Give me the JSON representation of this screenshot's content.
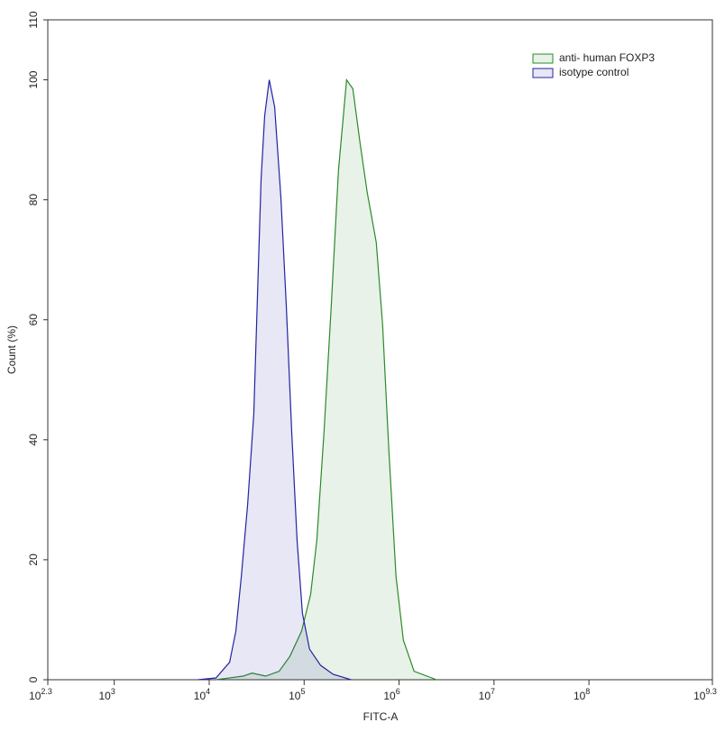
{
  "chart_data": {
    "type": "area",
    "x_label": "FITC-A",
    "y_label": "Count (%)",
    "x_log": true,
    "xlim": [
      199.526,
      1995262315
    ],
    "xticks": [
      {
        "value": 199.526,
        "label": "10",
        "power": "2.3"
      },
      {
        "value": 1000,
        "label": "10",
        "power": "3"
      },
      {
        "value": 10000,
        "label": "10",
        "power": "4"
      },
      {
        "value": 100000,
        "label": "10",
        "power": "5"
      },
      {
        "value": 1000000,
        "label": "10",
        "power": "6"
      },
      {
        "value": 10000000,
        "label": "10",
        "power": "7"
      },
      {
        "value": 100000000,
        "label": "10",
        "power": "8"
      },
      {
        "value": 1995262315,
        "label": "10",
        "power": "9.3"
      }
    ],
    "ylim": [
      0,
      110
    ],
    "yticks": [
      0,
      20,
      40,
      60,
      80,
      100,
      110
    ],
    "legend": "top-right",
    "series": [
      {
        "name": "anti- human FOXP3",
        "color": "#2a8a2a",
        "x": [
          11800,
          22700,
          28300,
          39300,
          54500,
          70800,
          94000,
          117000,
          136000,
          162000,
          193000,
          230000,
          280000,
          326000,
          388000,
          462000,
          575000,
          670000,
          780000,
          929000,
          1110000,
          1440000,
          2480000
        ],
        "values": [
          0,
          0.6,
          1.1,
          0.6,
          1.4,
          3.9,
          8.1,
          14.2,
          23.2,
          41.3,
          62.3,
          84.9,
          100,
          98.5,
          89.5,
          81.2,
          72.9,
          59.3,
          38.3,
          17.2,
          6.6,
          1.4,
          0
        ]
      },
      {
        "name": "isotype control",
        "color": "#2323a0",
        "x": [
          7640,
          11800,
          16400,
          19100,
          21800,
          25400,
          29500,
          35200,
          38400,
          42900,
          48900,
          56900,
          64900,
          74000,
          84300,
          95900,
          114000,
          149000,
          202000,
          312000
        ],
        "values": [
          0,
          0.3,
          2.9,
          8.1,
          17.2,
          29.2,
          44.3,
          83.4,
          94.0,
          100,
          95.5,
          80.4,
          62.3,
          41.3,
          23.2,
          11.1,
          5.1,
          2.4,
          0.9,
          0
        ]
      }
    ]
  }
}
